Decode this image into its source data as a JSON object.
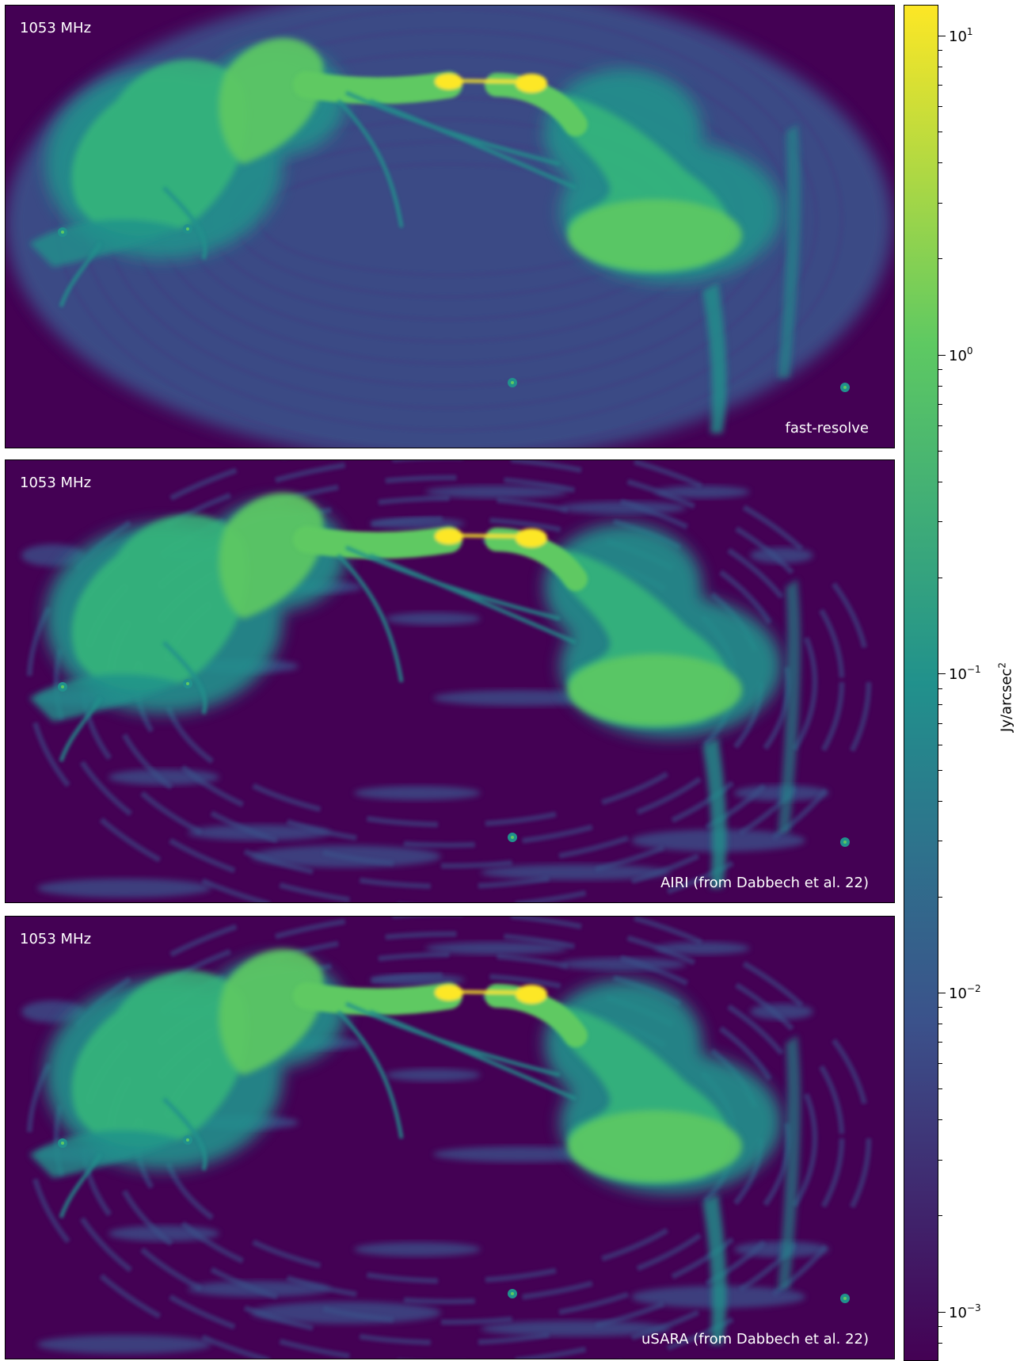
{
  "panels": [
    {
      "frequency": "1053 MHz",
      "method": "fast-resolve",
      "style": "smooth"
    },
    {
      "frequency": "1053 MHz",
      "method": "AIRI (from Dabbech et al. 22)",
      "style": "sparse"
    },
    {
      "frequency": "1053 MHz",
      "method": "uSARA (from Dabbech et al. 22)",
      "style": "sparse"
    }
  ],
  "colorbar": {
    "label_text": "Jy/arcsec",
    "label_exponent": "2",
    "scale": "log",
    "colormap": "viridis",
    "ticks": [
      {
        "base": "10",
        "exp": "1",
        "value": 10
      },
      {
        "base": "10",
        "exp": "0",
        "value": 1
      },
      {
        "base": "10",
        "exp": "−1",
        "value": 0.1
      },
      {
        "base": "10",
        "exp": "−2",
        "value": 0.01
      },
      {
        "base": "10",
        "exp": "−3",
        "value": 0.001
      }
    ],
    "range": [
      0.0007,
      12.5
    ]
  },
  "colors": {
    "viridis_dark": "#440154",
    "viridis_blue": "#3b528b",
    "viridis_teal": "#21918c",
    "viridis_green": "#5ec962",
    "viridis_yellow": "#fde725"
  }
}
